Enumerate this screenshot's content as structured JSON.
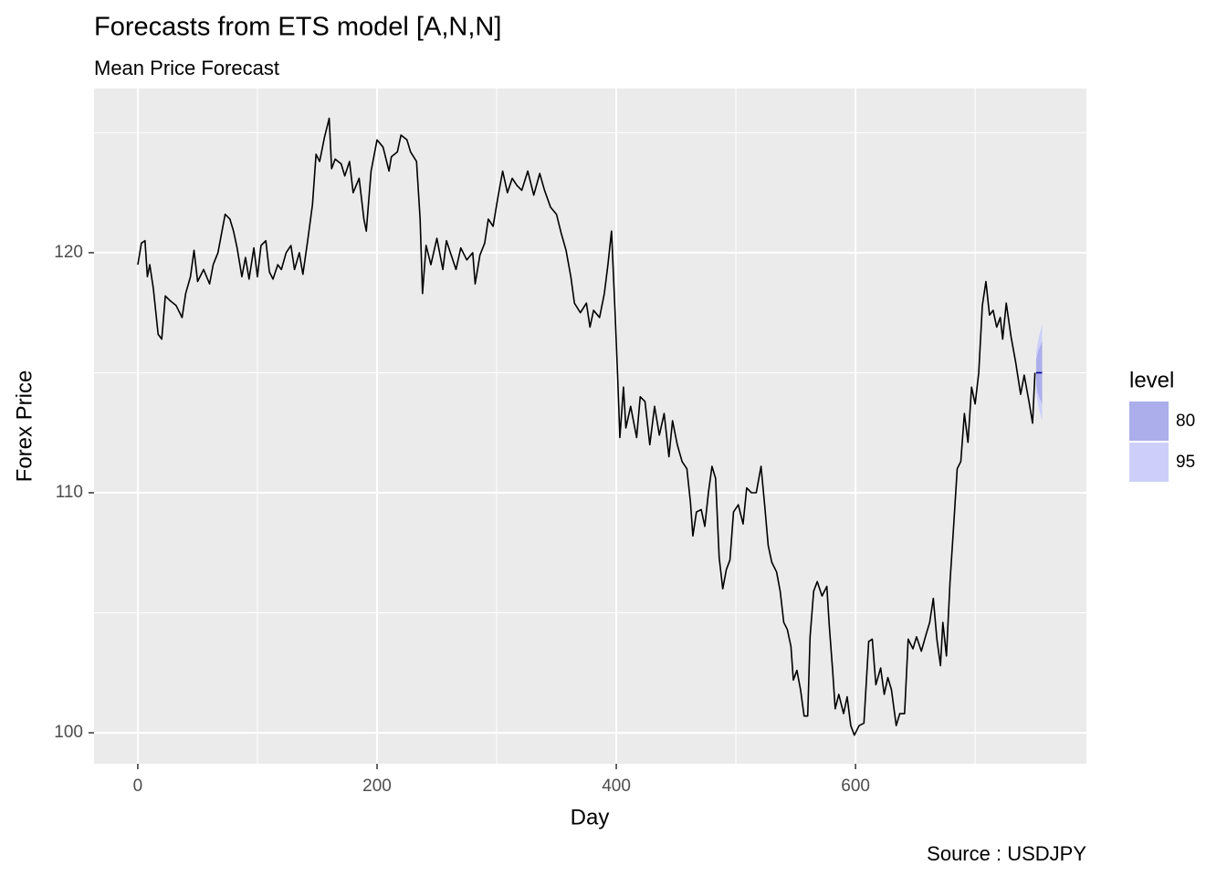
{
  "chart_data": {
    "type": "line",
    "title": "Forecasts from ETS model [A,N,N]",
    "subtitle": "Mean Price Forecast",
    "caption": "Source : USDJPY",
    "x_label": "Day",
    "y_label": "Forex Price",
    "color": "#000000",
    "x": [
      0,
      3,
      6,
      8,
      10,
      13,
      17,
      20,
      23,
      27,
      32,
      37,
      40,
      44,
      47,
      50,
      55,
      60,
      63,
      67,
      70,
      73,
      77,
      80,
      83,
      87,
      90,
      93,
      97,
      100,
      103,
      107,
      110,
      113,
      117,
      120,
      124,
      128,
      131,
      135,
      138,
      142,
      146,
      149,
      152,
      156,
      158,
      160,
      162,
      165,
      170,
      173,
      177,
      180,
      185,
      189,
      191,
      195,
      200,
      205,
      210,
      212,
      217,
      220,
      225,
      228,
      233,
      236,
      238,
      241,
      245,
      250,
      255,
      258,
      262,
      266,
      270,
      275,
      280,
      282,
      286,
      290,
      293,
      297,
      301,
      305,
      309,
      313,
      317,
      321,
      326,
      331,
      336,
      340,
      345,
      350,
      354,
      358,
      362,
      365,
      370,
      375,
      378,
      381,
      386,
      390,
      393,
      396,
      399,
      401,
      403,
      406,
      408,
      412,
      417,
      420,
      424,
      428,
      432,
      436,
      440,
      444,
      447,
      451,
      455,
      459,
      462,
      464,
      467,
      471,
      474,
      477,
      480,
      483,
      486,
      489,
      492,
      495,
      498,
      502,
      506,
      509,
      513,
      517,
      521,
      524,
      527,
      530,
      534,
      537,
      540,
      543,
      546,
      548,
      551,
      554,
      557,
      560,
      562,
      565,
      568,
      572,
      576,
      578,
      581,
      583,
      586,
      590,
      593,
      596,
      599,
      603,
      607,
      611,
      614,
      617,
      621,
      624,
      627,
      630,
      634,
      637,
      641,
      644,
      648,
      651,
      655,
      659,
      662,
      665,
      668,
      671,
      673,
      676,
      679,
      682,
      685,
      688,
      691,
      694,
      697,
      700,
      703,
      706,
      709,
      712,
      715,
      718,
      721,
      723,
      726,
      730,
      734,
      738,
      741,
      745,
      748,
      750
    ],
    "values": [
      119.5,
      120.4,
      120.5,
      119.0,
      119.5,
      118.5,
      116.6,
      116.4,
      118.2,
      118.0,
      117.8,
      117.3,
      118.3,
      119.0,
      120.1,
      118.8,
      119.3,
      118.7,
      119.5,
      120.0,
      120.8,
      121.6,
      121.4,
      120.9,
      120.2,
      119.0,
      119.8,
      118.9,
      120.2,
      119.0,
      120.3,
      120.5,
      119.2,
      118.9,
      119.5,
      119.3,
      120.0,
      120.3,
      119.3,
      120.0,
      119.1,
      120.5,
      122.0,
      124.1,
      123.8,
      124.8,
      125.2,
      125.6,
      123.5,
      123.9,
      123.7,
      123.2,
      123.8,
      122.5,
      123.1,
      121.4,
      120.9,
      123.4,
      124.7,
      124.4,
      123.4,
      124.0,
      124.2,
      124.9,
      124.7,
      124.2,
      123.8,
      121.4,
      118.3,
      120.3,
      119.5,
      120.6,
      119.3,
      120.5,
      119.9,
      119.3,
      120.2,
      119.7,
      120.0,
      118.7,
      119.9,
      120.4,
      121.4,
      121.1,
      122.3,
      123.4,
      122.5,
      123.1,
      122.8,
      122.6,
      123.4,
      122.4,
      123.3,
      122.6,
      121.9,
      121.6,
      120.8,
      120.1,
      119.0,
      117.9,
      117.5,
      117.9,
      116.9,
      117.6,
      117.3,
      118.3,
      119.5,
      120.9,
      117.5,
      115.0,
      112.3,
      114.4,
      112.7,
      113.6,
      112.3,
      114.0,
      113.8,
      112.0,
      113.6,
      112.4,
      113.3,
      111.5,
      113.0,
      112.0,
      111.3,
      111.0,
      109.6,
      108.2,
      109.2,
      109.3,
      108.6,
      110.0,
      111.1,
      110.6,
      107.3,
      106.0,
      106.8,
      107.2,
      109.2,
      109.5,
      108.7,
      110.2,
      110.0,
      110.0,
      111.1,
      109.5,
      107.8,
      107.1,
      106.7,
      105.9,
      104.6,
      104.3,
      103.6,
      102.2,
      102.6,
      101.8,
      100.7,
      100.7,
      104.0,
      105.9,
      106.3,
      105.7,
      106.1,
      104.5,
      102.5,
      101.0,
      101.6,
      100.8,
      101.5,
      100.3,
      99.9,
      100.3,
      100.4,
      103.8,
      103.9,
      102.0,
      102.7,
      101.6,
      102.3,
      101.8,
      100.3,
      100.8,
      100.8,
      103.9,
      103.5,
      104.0,
      103.4,
      104.1,
      104.6,
      105.6,
      103.9,
      102.8,
      104.6,
      103.2,
      106.3,
      108.6,
      111.0,
      111.3,
      113.3,
      112.1,
      114.4,
      113.7,
      115.0,
      117.8,
      118.8,
      117.4,
      117.6,
      116.9,
      117.3,
      116.4,
      117.9,
      116.5,
      115.4,
      114.1,
      114.9,
      113.8,
      112.9,
      115.0
    ],
    "forecast": {
      "x": [
        751,
        752,
        753,
        754,
        755,
        756
      ],
      "mean": [
        115,
        115,
        115,
        115,
        115,
        115
      ],
      "color": "#00008b",
      "legend_title": "level",
      "bands": [
        {
          "name": "80",
          "color": "#abaeea",
          "lower": [
            114.47,
            114.24,
            114.07,
            113.93,
            113.81,
            113.69
          ],
          "upper": [
            115.53,
            115.76,
            115.93,
            116.07,
            116.19,
            116.31
          ]
        },
        {
          "name": "95",
          "color": "#cdcffa",
          "lower": [
            114.18,
            113.84,
            113.58,
            113.37,
            113.17,
            113.0
          ],
          "upper": [
            115.82,
            116.16,
            116.42,
            116.63,
            116.83,
            117.0
          ]
        }
      ]
    },
    "xlim": [
      -36.6,
      793
    ],
    "ylim": [
      98.71,
      126.84
    ],
    "xticks": [
      0,
      200,
      400,
      600
    ],
    "yticks": [
      100,
      110,
      120
    ],
    "x_minor_grid": [
      100,
      300,
      500,
      700
    ],
    "y_minor_grid": [
      105,
      115,
      125
    ],
    "grid": true
  }
}
